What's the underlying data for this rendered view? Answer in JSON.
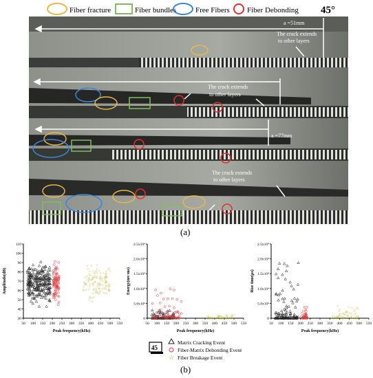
{
  "legend_top": {
    "items": [
      {
        "label": "Fiber fracture",
        "shape": "ellipse",
        "color": "#e8b84a"
      },
      {
        "label": "Fiber bundles",
        "shape": "rect",
        "color": "#7fbf5a"
      },
      {
        "label": "Free Fibers",
        "shape": "ellipse",
        "color": "#3a86d9"
      },
      {
        "label": "Fiber Debonding",
        "shape": "circle",
        "color": "#e03030"
      }
    ],
    "angle": "45°"
  },
  "photo": {
    "annotations": {
      "a1": "a =51mm",
      "a3": "a =77mm",
      "crack_extends_1a": "The crack extends",
      "crack_extends_1b": "to other layers",
      "crack_extends_2a": "The crack extends",
      "crack_extends_2b": "to other layers",
      "crack_extends_3a": "The crack extends",
      "crack_extends_3b": "to other layers"
    }
  },
  "panel_labels": {
    "a": "(a)",
    "b": "(b)"
  },
  "bottom_legend": {
    "badge": "45",
    "items": [
      {
        "label": "Matrix Cracking Event",
        "marker": "triangle",
        "color": "#222222"
      },
      {
        "label": "Fiber-Matrix Debonding Event",
        "marker": "circle",
        "color": "#e03a3a"
      },
      {
        "label": "Fiber Breakage Event",
        "marker": "star",
        "color": "#a8a81a"
      }
    ]
  },
  "colors": {
    "matrix": "#222222",
    "debond": "#e03a3a",
    "breakage": "#a8a81a"
  },
  "chart_data": [
    {
      "type": "scatter",
      "xlabel": "Peak frequency(kHz)",
      "ylabel": "Amplitude(dB)",
      "xlim": [
        50,
        550
      ],
      "ylim": [
        30,
        110
      ],
      "xticks": [
        "50",
        "100",
        "150",
        "200",
        "250",
        "300",
        "350",
        "400",
        "450",
        "500",
        "550"
      ],
      "yticks": [
        "30",
        "40",
        "50",
        "60",
        "70",
        "80",
        "90",
        "100",
        "110"
      ],
      "series": [
        {
          "name": "Matrix Cracking Event",
          "x_range": [
            70,
            190
          ],
          "y_range": [
            38,
            98
          ],
          "count": 260
        },
        {
          "name": "Fiber-Matrix Debonding Event",
          "x_range": [
            205,
            235
          ],
          "y_range": [
            38,
            98
          ],
          "count": 90
        },
        {
          "name": "Fiber Breakage Event",
          "x_range": [
            360,
            500
          ],
          "y_range": [
            42,
            95
          ],
          "count": 120
        }
      ]
    },
    {
      "type": "scatter",
      "xlabel": "Peak frequency(kHz)",
      "ylabel": "Energy(mv·ms)",
      "xlim": [
        50,
        550
      ],
      "ylim": [
        0,
        25000
      ],
      "xticks": [
        "50",
        "100",
        "150",
        "200",
        "250",
        "300",
        "350",
        "400",
        "450",
        "500",
        "550"
      ],
      "yticks": [
        "0",
        "5.0x10³",
        "1.0x10⁴",
        "1.5x10⁴",
        "2.0x10⁴",
        "2.5x10⁴"
      ],
      "series": [
        {
          "name": "Matrix Cracking Event",
          "x_range": [
            70,
            190
          ],
          "y_range": [
            0,
            3000
          ],
          "count": 90
        },
        {
          "name": "Fiber-Matrix Debonding Event",
          "x_range": [
            75,
            230
          ],
          "y_range": [
            0,
            10000
          ],
          "count": 70
        },
        {
          "name": "Fiber Breakage Event",
          "x_range": [
            360,
            500
          ],
          "y_range": [
            0,
            1200
          ],
          "count": 60
        }
      ]
    },
    {
      "type": "scatter",
      "xlabel": "Peak frequency(kHz)",
      "ylabel": "Rise time(μs)",
      "xlim": [
        50,
        550
      ],
      "ylim": [
        0,
        25000
      ],
      "xticks": [
        "50",
        "100",
        "150",
        "200",
        "250",
        "300",
        "350",
        "400",
        "450",
        "500",
        "550"
      ],
      "yticks": [
        "0",
        "5.0x10³",
        "1.0x10⁴",
        "1.5x10⁴",
        "2.0x10⁴",
        "2.5x10⁴"
      ],
      "series": [
        {
          "name": "Matrix Cracking Event",
          "x_range": [
            70,
            190
          ],
          "y_range": [
            0,
            20000
          ],
          "count": 120
        },
        {
          "name": "Fiber-Matrix Debonding Event",
          "x_range": [
            205,
            235
          ],
          "y_range": [
            0,
            4000
          ],
          "count": 40
        },
        {
          "name": "Fiber Breakage Event",
          "x_range": [
            360,
            500
          ],
          "y_range": [
            0,
            5000
          ],
          "count": 70
        }
      ]
    }
  ]
}
